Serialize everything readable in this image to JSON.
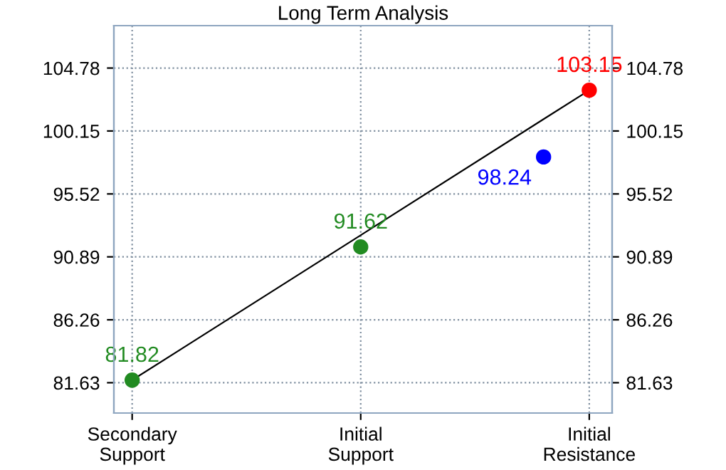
{
  "chart_data": {
    "type": "line",
    "title": "Long Term Analysis",
    "categories": [
      "Secondary\nSupport",
      null,
      null,
      null,
      null,
      "Initial\nSupport",
      null,
      null,
      null,
      null,
      "Initial\nResistance"
    ],
    "ylim": [
      79.4,
      107.9
    ],
    "yticks": [
      81.63,
      86.26,
      90.89,
      95.52,
      100.15,
      104.78
    ],
    "y2lim": [
      79.4,
      107.9
    ],
    "y2ticks": [
      81.63,
      86.26,
      90.89,
      95.52,
      100.15,
      104.78
    ],
    "grid": true,
    "series": [
      {
        "values": [
          81.82,
          null,
          null,
          null,
          null,
          null,
          null,
          null,
          null,
          null,
          103.15
        ],
        "color": "#000000"
      },
      {
        "type": "scatter",
        "values": [
          81.82,
          null,
          null,
          null,
          null,
          91.62,
          null,
          null,
          null,
          98.24,
          103.15
        ],
        "colors": [
          "#228b22",
          null,
          null,
          null,
          null,
          "#228b22",
          null,
          null,
          null,
          "#0000ff",
          "#ff0000"
        ],
        "marker": "circle",
        "value_labels": [
          "81.82",
          null,
          null,
          null,
          null,
          "91.62",
          null,
          null,
          null,
          "98.24",
          "103.15"
        ]
      }
    ]
  }
}
